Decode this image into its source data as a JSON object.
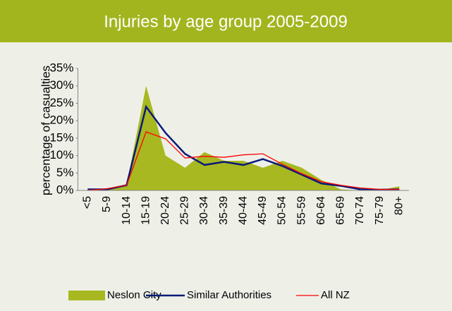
{
  "chart_data": {
    "type": "line",
    "title": "Injuries by age group 2005-2009",
    "y_label": "percentage of casualties",
    "categories": [
      "<5",
      "5-9",
      "10-14",
      "15-19",
      "20-24",
      "25-29",
      "30-34",
      "35-39",
      "40-44",
      "45-49",
      "50-54",
      "55-59",
      "60-64",
      "65-69",
      "70-74",
      "75-79",
      "80+"
    ],
    "series": [
      {
        "name": "Neslon City",
        "type": "area",
        "color": "#a8b820",
        "values": [
          0.3,
          0.3,
          1.5,
          30,
          10,
          6.5,
          11,
          8.5,
          8.5,
          6.5,
          8.5,
          6.5,
          3,
          0.3,
          0,
          0,
          1.2
        ]
      },
      {
        "name": "Similar Authorities",
        "type": "line",
        "color": "#0a1a78",
        "values": [
          0.3,
          0.3,
          1.5,
          24,
          16.5,
          10.5,
          7.3,
          8.2,
          7.3,
          9,
          7,
          4.5,
          2,
          1.3,
          0.3,
          0.2,
          0.3
        ]
      },
      {
        "name": "All NZ",
        "type": "line",
        "color": "#ff0000",
        "values": [
          0,
          0.5,
          1.5,
          16.8,
          14.8,
          9.3,
          9.8,
          9.5,
          10.2,
          10.5,
          7.5,
          4.8,
          2.5,
          1.5,
          0.7,
          0.3,
          0.3
        ]
      }
    ],
    "ylim": [
      0,
      35
    ],
    "yticks": [
      {
        "value": 0,
        "label": "0%"
      },
      {
        "value": 5,
        "label": "5%"
      },
      {
        "value": 10,
        "label": "10%"
      },
      {
        "value": 15,
        "label": "15%"
      },
      {
        "value": 20,
        "label": "20%"
      },
      {
        "value": 25,
        "label": "25%"
      },
      {
        "value": 30,
        "label": "30%"
      },
      {
        "value": 35,
        "label": "35%"
      }
    ],
    "legend": "bottom"
  }
}
